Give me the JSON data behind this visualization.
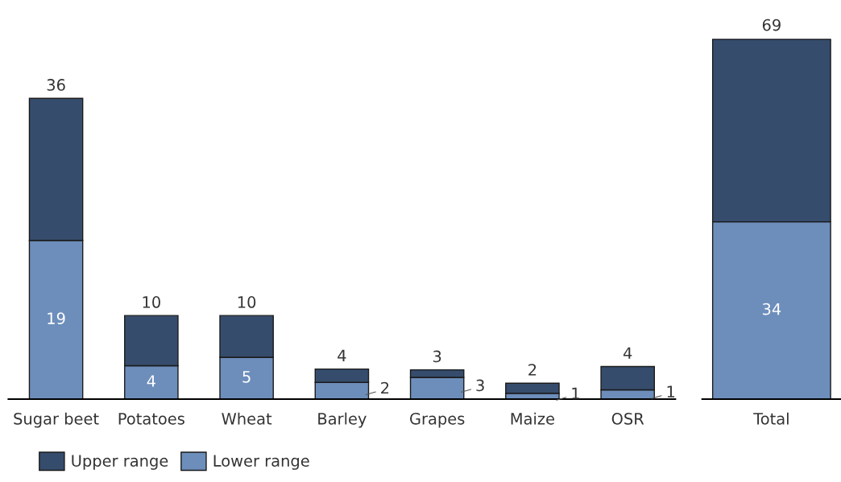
{
  "chart_data": [
    {
      "type": "bar",
      "stacked": true,
      "categories": [
        "Sugar beet",
        "Potatoes",
        "Wheat",
        "Barley",
        "Grapes",
        "Maize",
        "OSR"
      ],
      "series": [
        {
          "name": "Lower range",
          "color": "#6d8ebb",
          "values": [
            19,
            4,
            5,
            2,
            2.6,
            0.7,
            1.1
          ],
          "value_labels": [
            "19",
            "4",
            "5",
            "2",
            "3",
            "1",
            "1"
          ]
        },
        {
          "name": "Upper range",
          "color": "#364c6c",
          "values": [
            17,
            6,
            5,
            1.6,
            0.9,
            1.2,
            2.8
          ]
        }
      ],
      "totals": [
        "36",
        "10",
        "10",
        "4",
        "3",
        "2",
        "4"
      ],
      "legend": "bottom left"
    },
    {
      "type": "bar",
      "stacked": true,
      "categories": [
        "Total"
      ],
      "series": [
        {
          "color": "#6d8ebb",
          "values": [
            34
          ],
          "value_labels": [
            "34"
          ]
        },
        {
          "color": "#364c6c",
          "values": [
            35
          ]
        }
      ],
      "totals": [
        "69"
      ]
    }
  ]
}
